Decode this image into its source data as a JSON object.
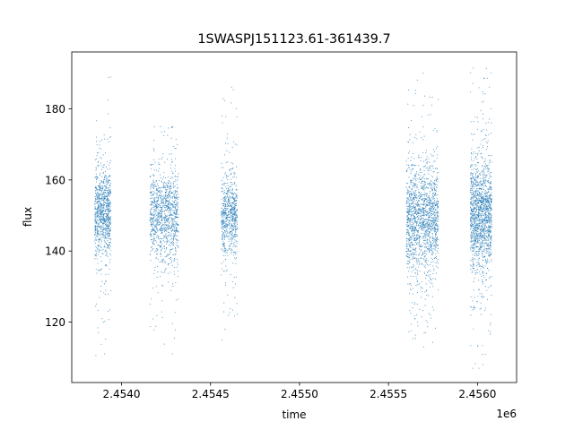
{
  "chart_data": {
    "type": "scatter",
    "title": "1SWASPJ151123.61-361439.7",
    "xlabel": "time",
    "ylabel": "flux",
    "x_offset_label": "1e6",
    "xlim": [
      2.45372,
      2.45622
    ],
    "ylim": [
      103,
      196
    ],
    "x_unit_scale": 1000000,
    "xticks": [
      2.454,
      2.4545,
      2.455,
      2.4555,
      2.456
    ],
    "xtick_labels": [
      "2.4540",
      "2.4545",
      "2.4550",
      "2.4555",
      "2.4560"
    ],
    "yticks": [
      120,
      140,
      160,
      180
    ],
    "ytick_labels": [
      "120",
      "140",
      "160",
      "180"
    ],
    "grid": false,
    "marker_color": "#1f77b4",
    "series": [
      {
        "clusters": [
          {
            "x_range": [
              2.45385,
              2.45394
            ],
            "y_center": 151,
            "y_spread": 6,
            "y_min": 107,
            "y_max": 190,
            "count": 900
          },
          {
            "x_range": [
              2.45416,
              2.45432
            ],
            "y_center": 150,
            "y_spread": 6,
            "y_min": 107,
            "y_max": 175,
            "count": 1100
          },
          {
            "x_range": [
              2.45456,
              2.45465
            ],
            "y_center": 150,
            "y_spread": 5.5,
            "y_min": 115,
            "y_max": 187,
            "count": 700
          },
          {
            "x_range": [
              2.4556,
              2.45578
            ],
            "y_center": 149,
            "y_spread": 7,
            "y_min": 113,
            "y_max": 190,
            "count": 1600
          },
          {
            "x_range": [
              2.45596,
              2.45608
            ],
            "y_center": 150,
            "y_spread": 7.5,
            "y_min": 107,
            "y_max": 192,
            "count": 1500
          }
        ]
      }
    ]
  }
}
